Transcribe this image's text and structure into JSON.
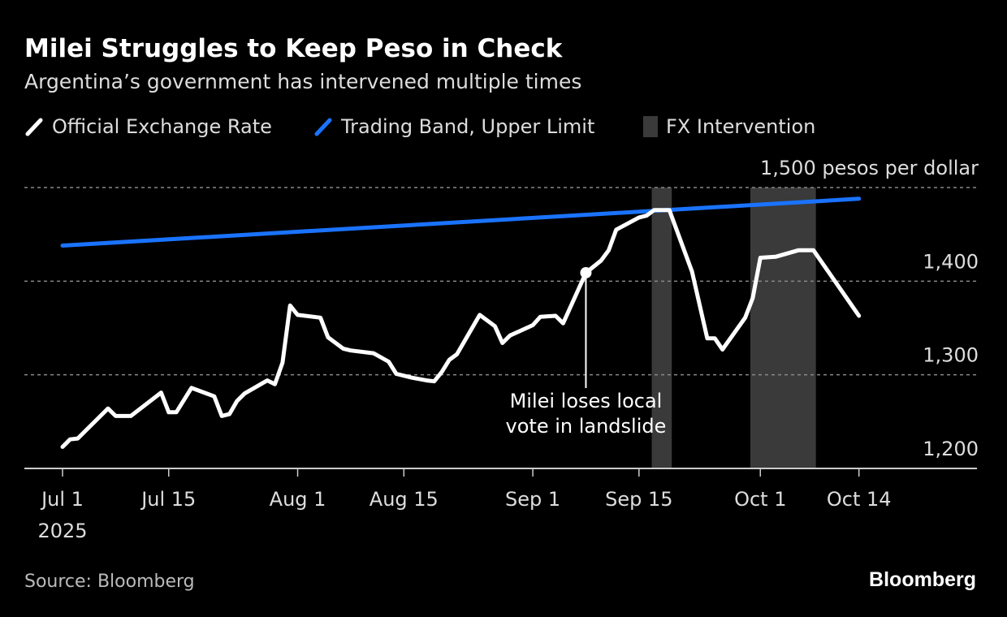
{
  "title": "Milei Struggles to Keep Peso in Check",
  "subtitle": "Argentina’s government has intervened multiple times",
  "legend": [
    {
      "label": "Official Exchange Rate",
      "color": "#ffffff"
    },
    {
      "label": "Trading Band, Upper Limit",
      "color": "#1a73ff"
    },
    {
      "label": "FX Intervention",
      "color": "#3a3a3a"
    }
  ],
  "source": "Source: Bloomberg",
  "logo": "Bloomberg",
  "chart_data": {
    "type": "line",
    "ylabel": "pesos per dollar",
    "ylim": [
      1200,
      1500
    ],
    "yticks": [
      {
        "value": 1200,
        "label": "1,200"
      },
      {
        "value": 1300,
        "label": "1,300"
      },
      {
        "value": 1400,
        "label": "1,400"
      },
      {
        "value": 1500,
        "label": "1,500 pesos per dollar"
      }
    ],
    "xticks": [
      {
        "date": "2025-07-01",
        "label": "Jul 1",
        "sub": "2025"
      },
      {
        "date": "2025-07-15",
        "label": "Jul 15"
      },
      {
        "date": "2025-08-01",
        "label": "Aug 1"
      },
      {
        "date": "2025-08-15",
        "label": "Aug 15"
      },
      {
        "date": "2025-09-01",
        "label": "Sep 1"
      },
      {
        "date": "2025-09-15",
        "label": "Sep 15"
      },
      {
        "date": "2025-10-01",
        "label": "Oct 1"
      },
      {
        "date": "2025-10-14",
        "label": "Oct 14"
      }
    ],
    "grid": true,
    "legend_position": "top",
    "series": [
      {
        "name": "Official Exchange Rate",
        "color": "#ffffff",
        "points": [
          [
            "2025-07-01",
            1223
          ],
          [
            "2025-07-02",
            1231
          ],
          [
            "2025-07-03",
            1232
          ],
          [
            "2025-07-07",
            1264
          ],
          [
            "2025-07-08",
            1256
          ],
          [
            "2025-07-10",
            1256
          ],
          [
            "2025-07-14",
            1281
          ],
          [
            "2025-07-15",
            1260
          ],
          [
            "2025-07-16",
            1260
          ],
          [
            "2025-07-18",
            1286
          ],
          [
            "2025-07-21",
            1277
          ],
          [
            "2025-07-22",
            1256
          ],
          [
            "2025-07-23",
            1258
          ],
          [
            "2025-07-24",
            1272
          ],
          [
            "2025-07-25",
            1280
          ],
          [
            "2025-07-28",
            1294
          ],
          [
            "2025-07-29",
            1290
          ],
          [
            "2025-07-30",
            1313
          ],
          [
            "2025-07-31",
            1374
          ],
          [
            "2025-08-01",
            1364
          ],
          [
            "2025-08-04",
            1361
          ],
          [
            "2025-08-05",
            1340
          ],
          [
            "2025-08-07",
            1328
          ],
          [
            "2025-08-08",
            1326
          ],
          [
            "2025-08-11",
            1323
          ],
          [
            "2025-08-13",
            1314
          ],
          [
            "2025-08-14",
            1301
          ],
          [
            "2025-08-16",
            1297
          ],
          [
            "2025-08-18",
            1294
          ],
          [
            "2025-08-19",
            1293
          ],
          [
            "2025-08-20",
            1303
          ],
          [
            "2025-08-21",
            1316
          ],
          [
            "2025-08-22",
            1322
          ],
          [
            "2025-08-25",
            1364
          ],
          [
            "2025-08-27",
            1352
          ],
          [
            "2025-08-28",
            1334
          ],
          [
            "2025-08-29",
            1342
          ],
          [
            "2025-09-01",
            1353
          ],
          [
            "2025-09-02",
            1362
          ],
          [
            "2025-09-04",
            1363
          ],
          [
            "2025-09-05",
            1355
          ],
          [
            "2025-09-08",
            1409
          ],
          [
            "2025-09-10",
            1422
          ],
          [
            "2025-09-11",
            1433
          ],
          [
            "2025-09-12",
            1455
          ],
          [
            "2025-09-15",
            1468
          ],
          [
            "2025-09-16",
            1470
          ],
          [
            "2025-09-17",
            1476
          ],
          [
            "2025-09-19",
            1476
          ],
          [
            "2025-09-22",
            1410
          ],
          [
            "2025-09-24",
            1339
          ],
          [
            "2025-09-25",
            1339
          ],
          [
            "2025-09-26",
            1327
          ],
          [
            "2025-09-29",
            1361
          ],
          [
            "2025-09-30",
            1382
          ],
          [
            "2025-10-01",
            1425
          ],
          [
            "2025-10-03",
            1426
          ],
          [
            "2025-10-06",
            1433
          ],
          [
            "2025-10-08",
            1433
          ],
          [
            "2025-10-14",
            1363
          ]
        ]
      },
      {
        "name": "Trading Band, Upper Limit",
        "color": "#1a73ff",
        "points": [
          [
            "2025-07-01",
            1438
          ],
          [
            "2025-10-14",
            1488
          ]
        ]
      }
    ],
    "shaded_ranges": [
      {
        "name": "FX Intervention",
        "start": "2025-09-17",
        "end": "2025-09-19"
      },
      {
        "name": "FX Intervention",
        "start": "2025-09-30",
        "end": "2025-10-08"
      }
    ],
    "annotations": [
      {
        "date": "2025-09-08",
        "value": 1409,
        "lines": [
          "Milei loses local",
          "vote in landslide"
        ]
      }
    ]
  }
}
